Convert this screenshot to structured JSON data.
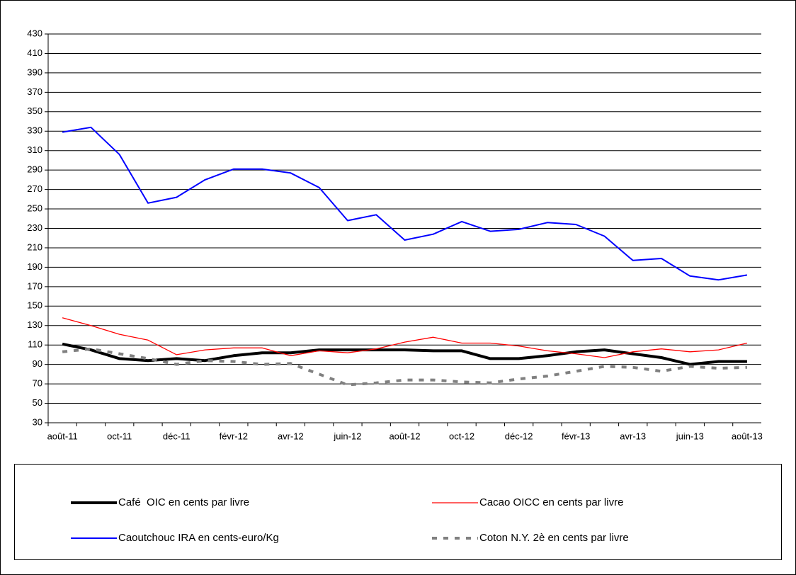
{
  "chart_data": {
    "type": "line",
    "categories": [
      "août-11",
      null,
      "oct-11",
      null,
      "déc-11",
      null,
      "févr-12",
      null,
      "avr-12",
      null,
      "juin-12",
      null,
      "août-12",
      null,
      "oct-12",
      null,
      "déc-12",
      null,
      "févr-13",
      null,
      "avr-13",
      null,
      "juin-13",
      null,
      "août-13"
    ],
    "series": [
      {
        "name": "Café  OIC en cents par livre",
        "color": "#000000",
        "style": "solid",
        "width": 4,
        "values": [
          111,
          105,
          96,
          94,
          96,
          94,
          99,
          102,
          102,
          105,
          105,
          105,
          105,
          104,
          104,
          96,
          96,
          99,
          103,
          105,
          101,
          97,
          90,
          93,
          93
        ]
      },
      {
        "name": "Cacao OICC en cents par livre",
        "color": "#ff0000",
        "style": "solid",
        "width": 1.3,
        "values": [
          138,
          130,
          121,
          115,
          100,
          105,
          107,
          107,
          99,
          104,
          102,
          106,
          113,
          118,
          112,
          112,
          109,
          104,
          101,
          97,
          103,
          106,
          103,
          105,
          112
        ]
      },
      {
        "name": "Caoutchouc IRA en cents-euro/Kg",
        "color": "#0000ff",
        "style": "solid",
        "width": 2,
        "values": [
          329,
          334,
          306,
          256,
          262,
          280,
          291,
          291,
          287,
          272,
          238,
          244,
          218,
          224,
          237,
          227,
          229,
          236,
          234,
          222,
          197,
          199,
          181,
          177,
          182
        ]
      },
      {
        "name": "Coton N.Y. 2è en cents par livre",
        "color": "#808080",
        "style": "dashed",
        "width": 4,
        "values": [
          103,
          106,
          101,
          96,
          90,
          94,
          93,
          90,
          91,
          80,
          69,
          71,
          74,
          74,
          72,
          71,
          75,
          78,
          83,
          88,
          87,
          83,
          88,
          86,
          87
        ]
      }
    ],
    "ylim": [
      30,
      430
    ],
    "yticks": [
      30,
      50,
      70,
      90,
      110,
      130,
      150,
      170,
      190,
      210,
      230,
      250,
      270,
      290,
      310,
      330,
      350,
      370,
      390,
      410,
      430
    ],
    "grid": true,
    "legend": "bottom"
  }
}
